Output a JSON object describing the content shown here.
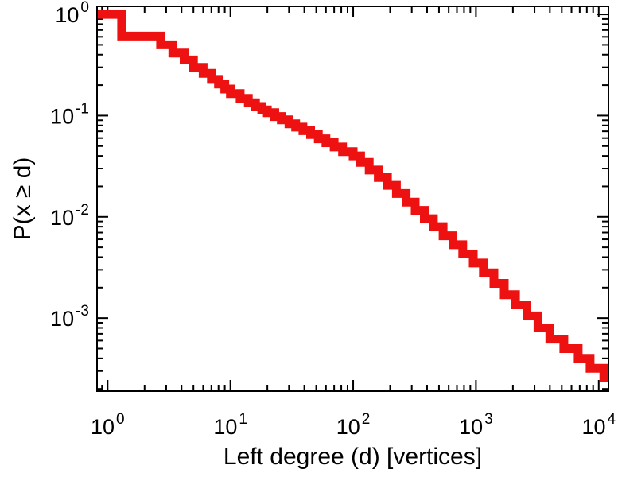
{
  "figure": {
    "background": "#ffffff",
    "border_color": "#000000"
  },
  "chart_data": {
    "type": "line",
    "subtype": "ccdf-step-plot",
    "title": "",
    "xlabel": "Left degree (d) [vertices]",
    "ylabel": "P(x ≥ d)",
    "xscale": "log",
    "yscale": "log",
    "xlim": [
      0.82,
      12000
    ],
    "ylim": [
      0.00019,
      1.2
    ],
    "grid": false,
    "legend": "none",
    "tick_direction": "in",
    "axes_mirrored": true,
    "x_major_ticks": [
      1,
      10,
      100,
      1000,
      10000
    ],
    "y_major_ticks": [
      1,
      0.1,
      0.01,
      0.001
    ],
    "x_tick_labels": [
      "10^0",
      "10^1",
      "10^2",
      "10^3",
      "10^4"
    ],
    "y_tick_labels": [
      "10^0",
      "10^-1",
      "10^-2",
      "10^-3"
    ],
    "line_color": "#ee1111",
    "line_width": 11,
    "points": [
      [
        1,
        1.0
      ],
      [
        1.3,
        0.61
      ],
      [
        2.7,
        0.5
      ],
      [
        3.4,
        0.415
      ],
      [
        4.2,
        0.355
      ],
      [
        5,
        0.3
      ],
      [
        6,
        0.262
      ],
      [
        7,
        0.228
      ],
      [
        8,
        0.205
      ],
      [
        9,
        0.183
      ],
      [
        10,
        0.165
      ],
      [
        12,
        0.148
      ],
      [
        14,
        0.134
      ],
      [
        16,
        0.123
      ],
      [
        18,
        0.114
      ],
      [
        20,
        0.107
      ],
      [
        23,
        0.098
      ],
      [
        26,
        0.091
      ],
      [
        30,
        0.083
      ],
      [
        34,
        0.077
      ],
      [
        39,
        0.071
      ],
      [
        45,
        0.065
      ],
      [
        52,
        0.059
      ],
      [
        60,
        0.054
      ],
      [
        70,
        0.049
      ],
      [
        82,
        0.044
      ],
      [
        100,
        0.04
      ],
      [
        115,
        0.0345
      ],
      [
        135,
        0.029
      ],
      [
        160,
        0.0245
      ],
      [
        190,
        0.0205
      ],
      [
        225,
        0.017
      ],
      [
        270,
        0.014
      ],
      [
        320,
        0.0116
      ],
      [
        380,
        0.0096
      ],
      [
        450,
        0.008
      ],
      [
        540,
        0.0065
      ],
      [
        650,
        0.0053
      ],
      [
        780,
        0.0043
      ],
      [
        950,
        0.0035
      ],
      [
        1150,
        0.0028
      ],
      [
        1400,
        0.0022
      ],
      [
        1700,
        0.0017
      ],
      [
        2100,
        0.00135
      ],
      [
        2600,
        0.00105
      ],
      [
        3200,
        0.0008
      ],
      [
        4000,
        0.00062
      ],
      [
        5200,
        0.0005
      ],
      [
        6800,
        0.0004
      ],
      [
        8500,
        0.00032
      ],
      [
        11000,
        0.00026
      ]
    ]
  }
}
